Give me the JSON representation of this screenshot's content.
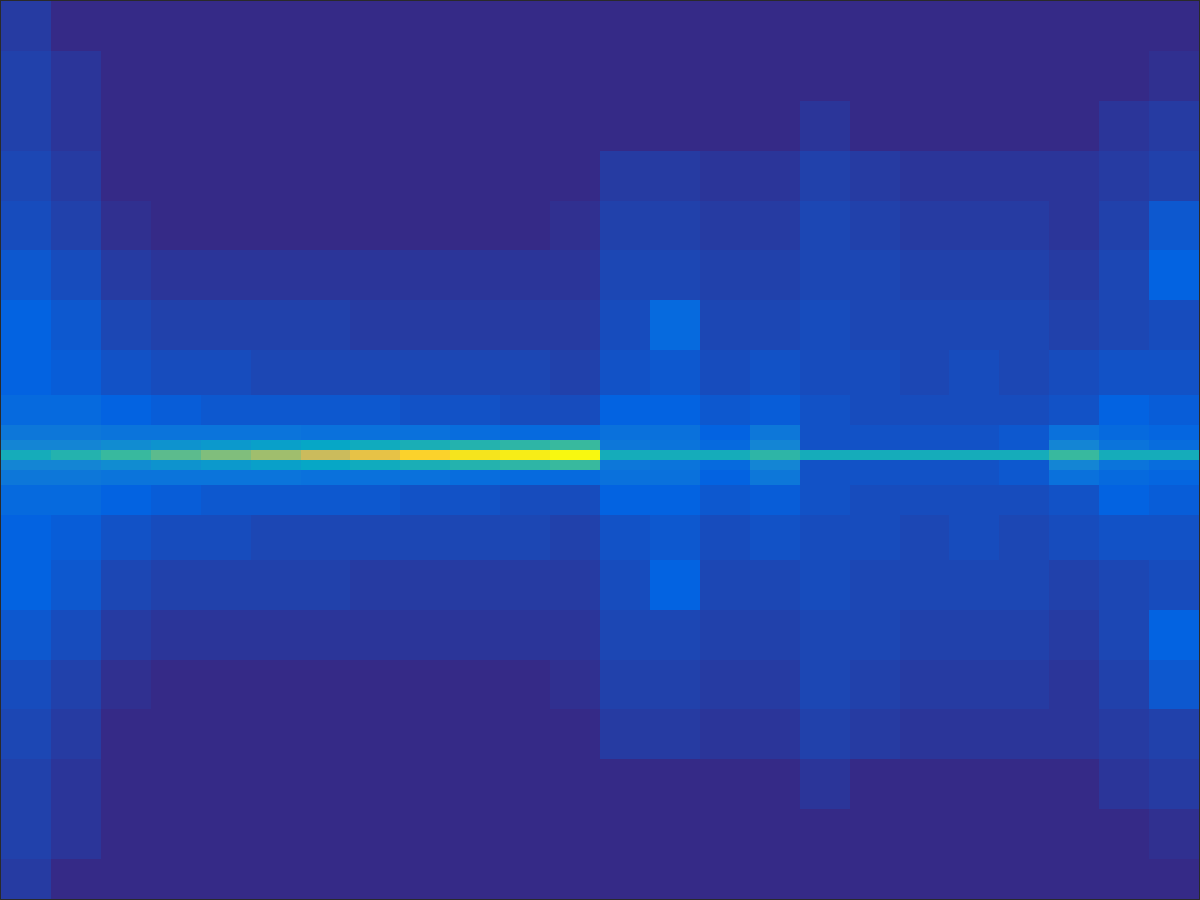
{
  "chart_data": {
    "type": "heatmap",
    "color": "parula",
    "tick_labels": false,
    "x": [
      25,
      75,
      125,
      175,
      225,
      275,
      325,
      375,
      425,
      475,
      525,
      575,
      625,
      675,
      725,
      775,
      825,
      875,
      925,
      975,
      1025,
      1075,
      1125,
      1175
    ],
    "y": [
      25,
      75,
      125,
      175,
      225,
      275,
      325,
      375,
      415,
      435,
      445,
      455,
      465,
      475,
      495,
      535,
      585,
      635,
      685,
      735,
      785,
      835,
      885
    ],
    "xlim": [
      0,
      1200
    ],
    "ylim": [
      900,
      0
    ],
    "zlim": [
      0,
      1
    ],
    "z": [
      [
        0.03,
        0,
        0,
        0,
        0,
        0,
        0,
        0,
        0,
        0,
        0,
        0,
        0,
        0,
        0,
        0,
        0,
        0,
        0,
        0,
        0,
        0,
        0,
        0
      ],
      [
        0.04,
        0.02,
        0,
        0,
        0,
        0,
        0,
        0,
        0,
        0,
        0,
        0,
        0,
        0,
        0,
        0,
        0,
        0,
        0,
        0,
        0,
        0,
        0,
        0.01
      ],
      [
        0.04,
        0.02,
        0,
        0,
        0,
        0,
        0,
        0,
        0,
        0,
        0,
        0,
        0,
        0,
        0,
        0,
        0.02,
        0,
        0,
        0,
        0,
        0,
        0.02,
        0.03
      ],
      [
        0.05,
        0.03,
        0,
        0,
        0,
        0,
        0,
        0,
        0,
        0,
        0,
        0,
        0.03,
        0.03,
        0.02,
        0.02,
        0.04,
        0.03,
        0.02,
        0.02,
        0.02,
        0.02,
        0.03,
        0.04
      ],
      [
        0.06,
        0.04,
        0.01,
        0,
        0,
        0,
        0,
        0,
        0,
        0,
        0,
        0.01,
        0.04,
        0.04,
        0.03,
        0.03,
        0.05,
        0.04,
        0.03,
        0.03,
        0.03,
        0.02,
        0.04,
        0.08
      ],
      [
        0.08,
        0.06,
        0.03,
        0.02,
        0.02,
        0.02,
        0.02,
        0.02,
        0.02,
        0.02,
        0.02,
        0.02,
        0.05,
        0.05,
        0.04,
        0.04,
        0.05,
        0.05,
        0.04,
        0.04,
        0.04,
        0.03,
        0.05,
        0.1
      ],
      [
        0.1,
        0.08,
        0.05,
        0.04,
        0.04,
        0.04,
        0.04,
        0.03,
        0.03,
        0.03,
        0.03,
        0.03,
        0.06,
        0.12,
        0.05,
        0.05,
        0.06,
        0.05,
        0.05,
        0.05,
        0.05,
        0.04,
        0.05,
        0.06
      ],
      [
        0.1,
        0.09,
        0.07,
        0.06,
        0.06,
        0.05,
        0.05,
        0.05,
        0.05,
        0.05,
        0.05,
        0.04,
        0.07,
        0.08,
        0.06,
        0.07,
        0.06,
        0.06,
        0.05,
        0.06,
        0.05,
        0.06,
        0.07,
        0.07
      ],
      [
        0.12,
        0.12,
        0.1,
        0.09,
        0.08,
        0.08,
        0.08,
        0.08,
        0.07,
        0.07,
        0.06,
        0.06,
        0.1,
        0.1,
        0.08,
        0.09,
        0.07,
        0.06,
        0.06,
        0.06,
        0.06,
        0.07,
        0.1,
        0.09
      ],
      [
        0.16,
        0.16,
        0.15,
        0.15,
        0.15,
        0.15,
        0.14,
        0.14,
        0.14,
        0.13,
        0.12,
        0.12,
        0.14,
        0.14,
        0.1,
        0.16,
        0.07,
        0.07,
        0.07,
        0.07,
        0.08,
        0.14,
        0.12,
        0.11
      ],
      [
        0.2,
        0.2,
        0.22,
        0.24,
        0.26,
        0.28,
        0.3,
        0.32,
        0.34,
        0.36,
        0.38,
        0.4,
        0.16,
        0.15,
        0.12,
        0.2,
        0.07,
        0.07,
        0.07,
        0.07,
        0.08,
        0.2,
        0.15,
        0.13
      ],
      [
        0.33,
        0.36,
        0.4,
        0.44,
        0.48,
        0.52,
        0.58,
        0.64,
        0.72,
        0.8,
        0.88,
        0.97,
        0.33,
        0.33,
        0.33,
        0.38,
        0.33,
        0.33,
        0.33,
        0.33,
        0.33,
        0.4,
        0.33,
        0.33
      ],
      [
        0.2,
        0.2,
        0.22,
        0.24,
        0.26,
        0.28,
        0.3,
        0.32,
        0.34,
        0.36,
        0.38,
        0.4,
        0.16,
        0.15,
        0.12,
        0.2,
        0.07,
        0.07,
        0.07,
        0.07,
        0.08,
        0.2,
        0.15,
        0.13
      ],
      [
        0.16,
        0.16,
        0.15,
        0.15,
        0.15,
        0.15,
        0.14,
        0.14,
        0.14,
        0.13,
        0.12,
        0.12,
        0.14,
        0.14,
        0.1,
        0.16,
        0.07,
        0.07,
        0.07,
        0.07,
        0.08,
        0.14,
        0.12,
        0.11
      ],
      [
        0.12,
        0.12,
        0.1,
        0.09,
        0.08,
        0.08,
        0.08,
        0.08,
        0.07,
        0.07,
        0.06,
        0.06,
        0.1,
        0.1,
        0.08,
        0.09,
        0.07,
        0.06,
        0.06,
        0.06,
        0.06,
        0.07,
        0.1,
        0.09
      ],
      [
        0.1,
        0.09,
        0.07,
        0.06,
        0.06,
        0.05,
        0.05,
        0.05,
        0.05,
        0.05,
        0.05,
        0.04,
        0.07,
        0.08,
        0.06,
        0.07,
        0.06,
        0.06,
        0.05,
        0.06,
        0.05,
        0.06,
        0.07,
        0.07
      ],
      [
        0.1,
        0.08,
        0.05,
        0.04,
        0.04,
        0.04,
        0.04,
        0.03,
        0.03,
        0.03,
        0.03,
        0.03,
        0.06,
        0.1,
        0.05,
        0.05,
        0.06,
        0.05,
        0.05,
        0.05,
        0.05,
        0.04,
        0.05,
        0.06
      ],
      [
        0.08,
        0.06,
        0.03,
        0.02,
        0.02,
        0.02,
        0.02,
        0.02,
        0.02,
        0.02,
        0.02,
        0.02,
        0.05,
        0.05,
        0.04,
        0.04,
        0.05,
        0.05,
        0.04,
        0.04,
        0.04,
        0.03,
        0.05,
        0.1
      ],
      [
        0.06,
        0.04,
        0.01,
        0,
        0,
        0,
        0,
        0,
        0,
        0,
        0,
        0.01,
        0.04,
        0.04,
        0.03,
        0.03,
        0.05,
        0.04,
        0.03,
        0.03,
        0.03,
        0.02,
        0.04,
        0.08
      ],
      [
        0.05,
        0.03,
        0,
        0,
        0,
        0,
        0,
        0,
        0,
        0,
        0,
        0,
        0.03,
        0.03,
        0.02,
        0.02,
        0.04,
        0.03,
        0.02,
        0.02,
        0.02,
        0.02,
        0.03,
        0.04
      ],
      [
        0.04,
        0.02,
        0,
        0,
        0,
        0,
        0,
        0,
        0,
        0,
        0,
        0,
        0,
        0,
        0,
        0,
        0.02,
        0,
        0,
        0,
        0,
        0,
        0.02,
        0.03
      ],
      [
        0.04,
        0.02,
        0,
        0,
        0,
        0,
        0,
        0,
        0,
        0,
        0,
        0,
        0,
        0,
        0,
        0,
        0,
        0,
        0,
        0,
        0,
        0,
        0,
        0.01
      ],
      [
        0.03,
        0,
        0,
        0,
        0,
        0,
        0,
        0,
        0,
        0,
        0,
        0,
        0,
        0,
        0,
        0,
        0,
        0,
        0,
        0,
        0,
        0,
        0,
        0
      ]
    ]
  }
}
